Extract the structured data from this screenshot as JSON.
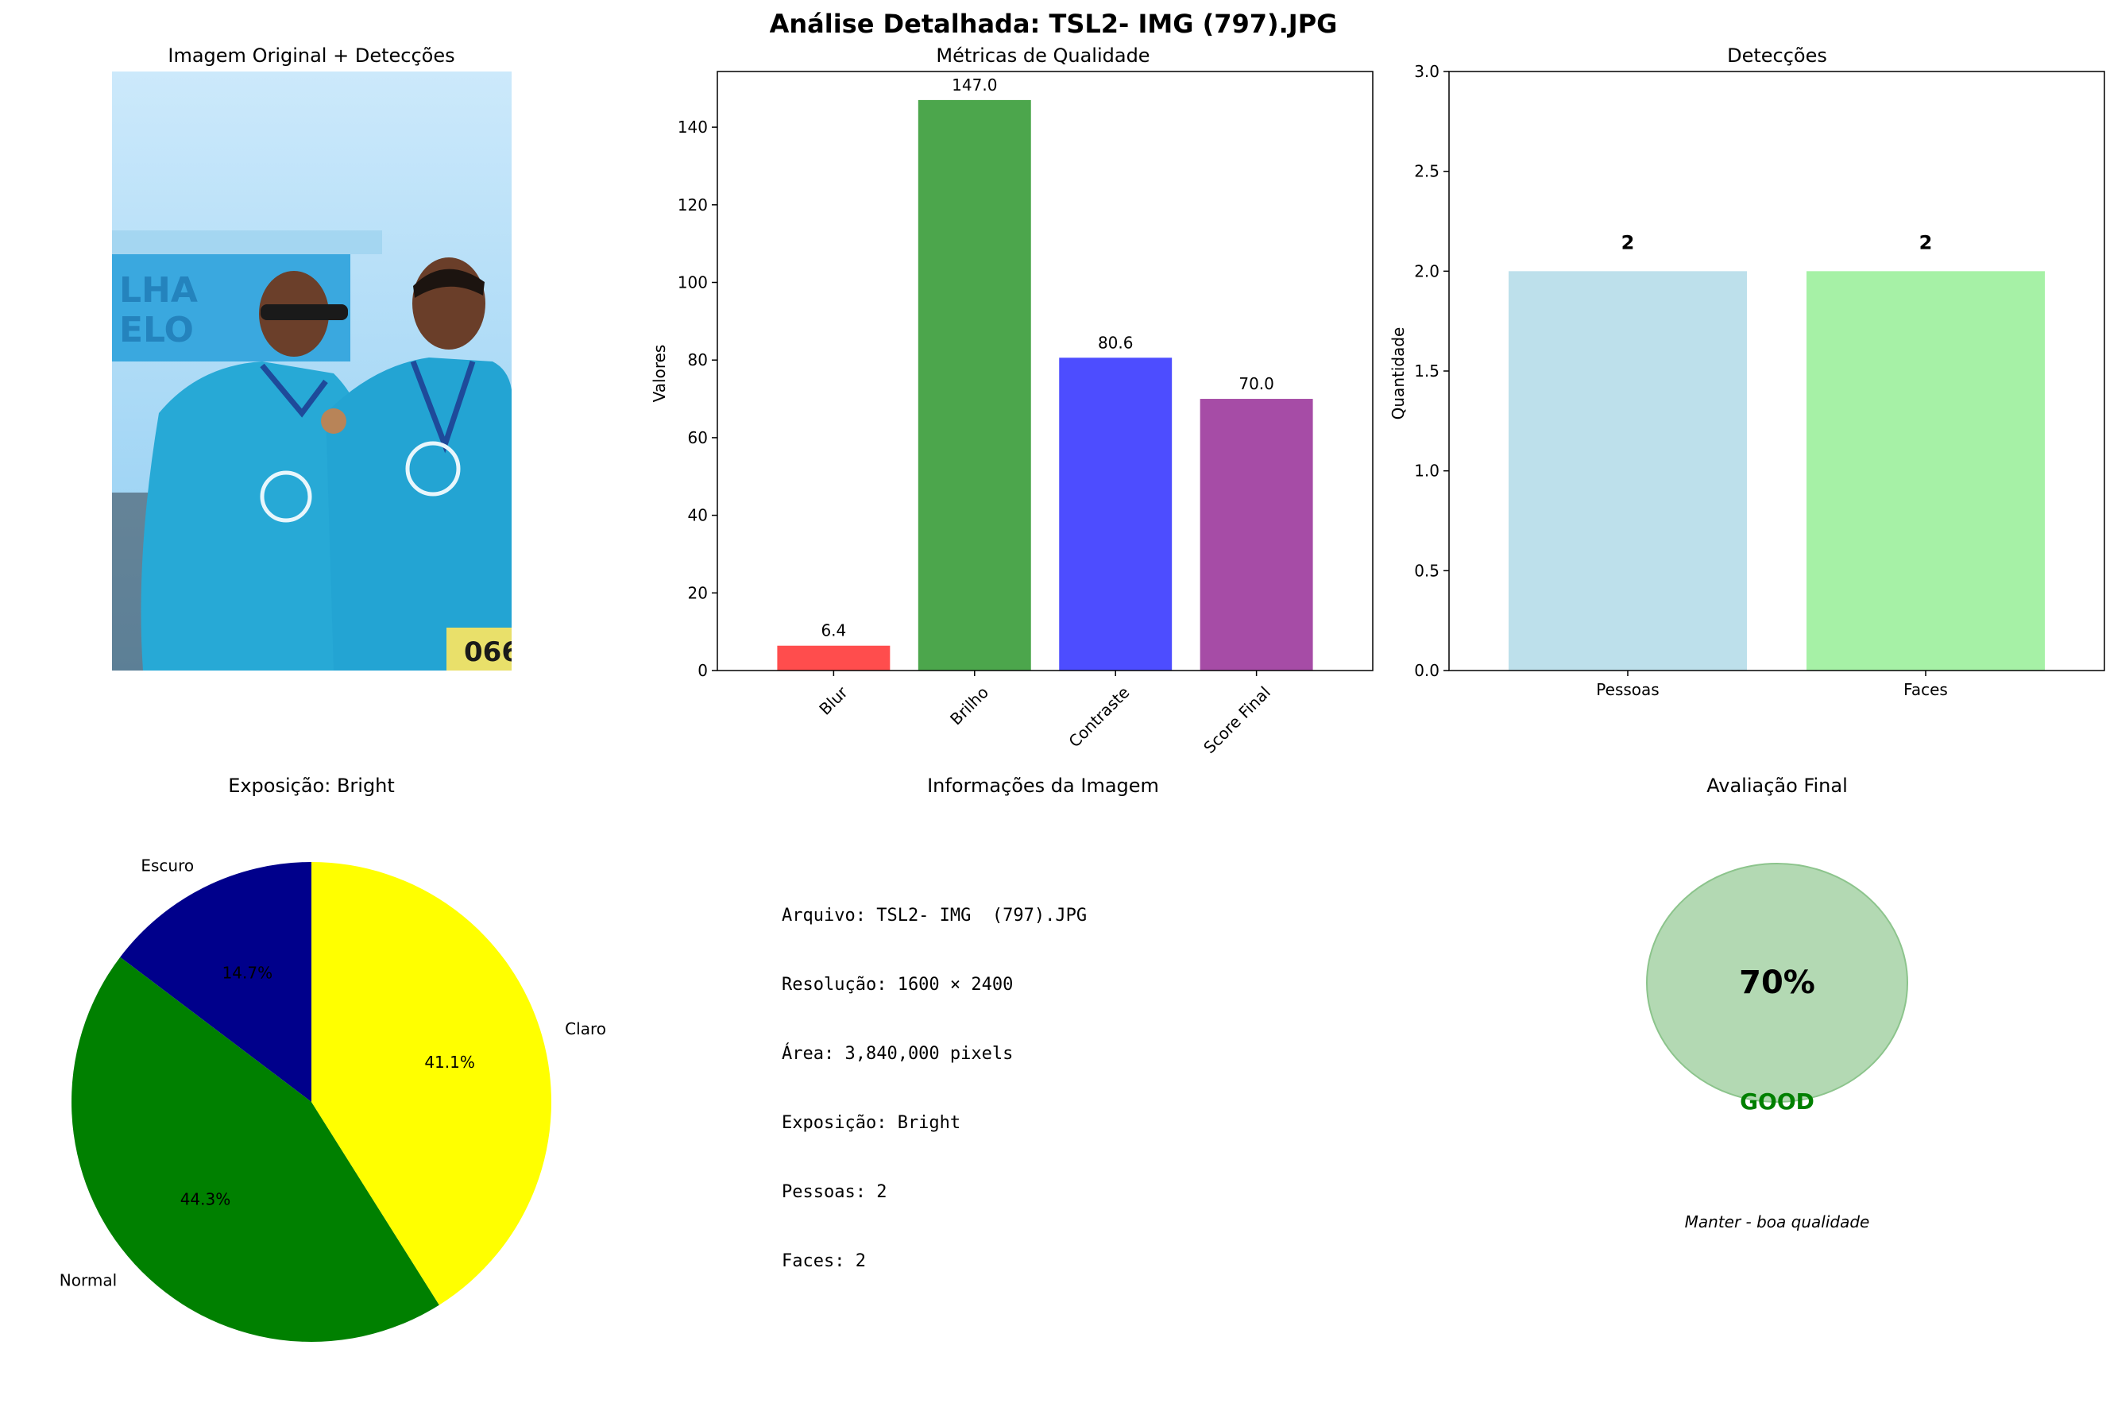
{
  "suptitle": "Análise Detalhada: TSL2- IMG  (797).JPG",
  "photo_panel": {
    "title": "Imagem Original + Detecções",
    "sky_top": "#cce9fb",
    "sky_bottom": "#8fcdf2",
    "shirt": "#27a9d6",
    "banner": "#3aa8df",
    "banner_text": [
      "LHA",
      "ELO"
    ],
    "bib_number": "066"
  },
  "chart_data": [
    {
      "type": "bar",
      "title": "Métricas de Qualidade",
      "xlabel": "",
      "ylabel": "Valores",
      "categories": [
        "Blur",
        "Brilho",
        "Contraste",
        "Score Final"
      ],
      "values": [
        6.4,
        147.0,
        80.6,
        70.0
      ],
      "value_labels": [
        "6.4",
        "147.0",
        "80.6",
        "70.0"
      ],
      "colors": [
        "#ff4d4d",
        "#4ca64c",
        "#4d4dff",
        "#a64ca6"
      ],
      "ylim": [
        0,
        154.35
      ],
      "yticks": [
        0,
        20,
        40,
        60,
        80,
        100,
        120,
        140
      ],
      "grid": false,
      "xtick_rotation": 45
    },
    {
      "type": "bar",
      "title": "Detecções",
      "xlabel": "",
      "ylabel": "Quantidade",
      "categories": [
        "Pessoas",
        "Faces"
      ],
      "values": [
        2,
        2
      ],
      "value_labels": [
        "2",
        "2"
      ],
      "colors": [
        "#add8e6",
        "#90ee90"
      ],
      "alpha": 0.8,
      "ylim": [
        0,
        3
      ],
      "yticks": [
        "0.0",
        "0.5",
        "1.0",
        "1.5",
        "2.0",
        "2.5",
        "3.0"
      ],
      "grid": false
    },
    {
      "type": "pie",
      "title": "Exposição: Bright",
      "labels": [
        "Escuro",
        "Normal",
        "Claro"
      ],
      "values": [
        14.7,
        44.3,
        41.1
      ],
      "value_labels": [
        "14.7%",
        "44.3%",
        "41.1%"
      ],
      "colors": [
        "#00008b",
        "#008000",
        "#ffff00"
      ],
      "start_angle_deg": 90
    }
  ],
  "info_panel": {
    "title": "Informações da Imagem",
    "lines": [
      "Arquivo: TSL2- IMG  (797).JPG",
      "Resolução: 1600 × 2400",
      "Área: 3,840,000 pixels",
      "Exposição: Bright",
      "Pessoas: 2",
      "Faces: 2"
    ]
  },
  "final_panel": {
    "title": "Avaliação Final",
    "score_label": "70%",
    "rating": "GOOD",
    "rating_color": "#008000",
    "circle_color": "#b3d9b3",
    "recommendation": "Manter - boa qualidade"
  }
}
